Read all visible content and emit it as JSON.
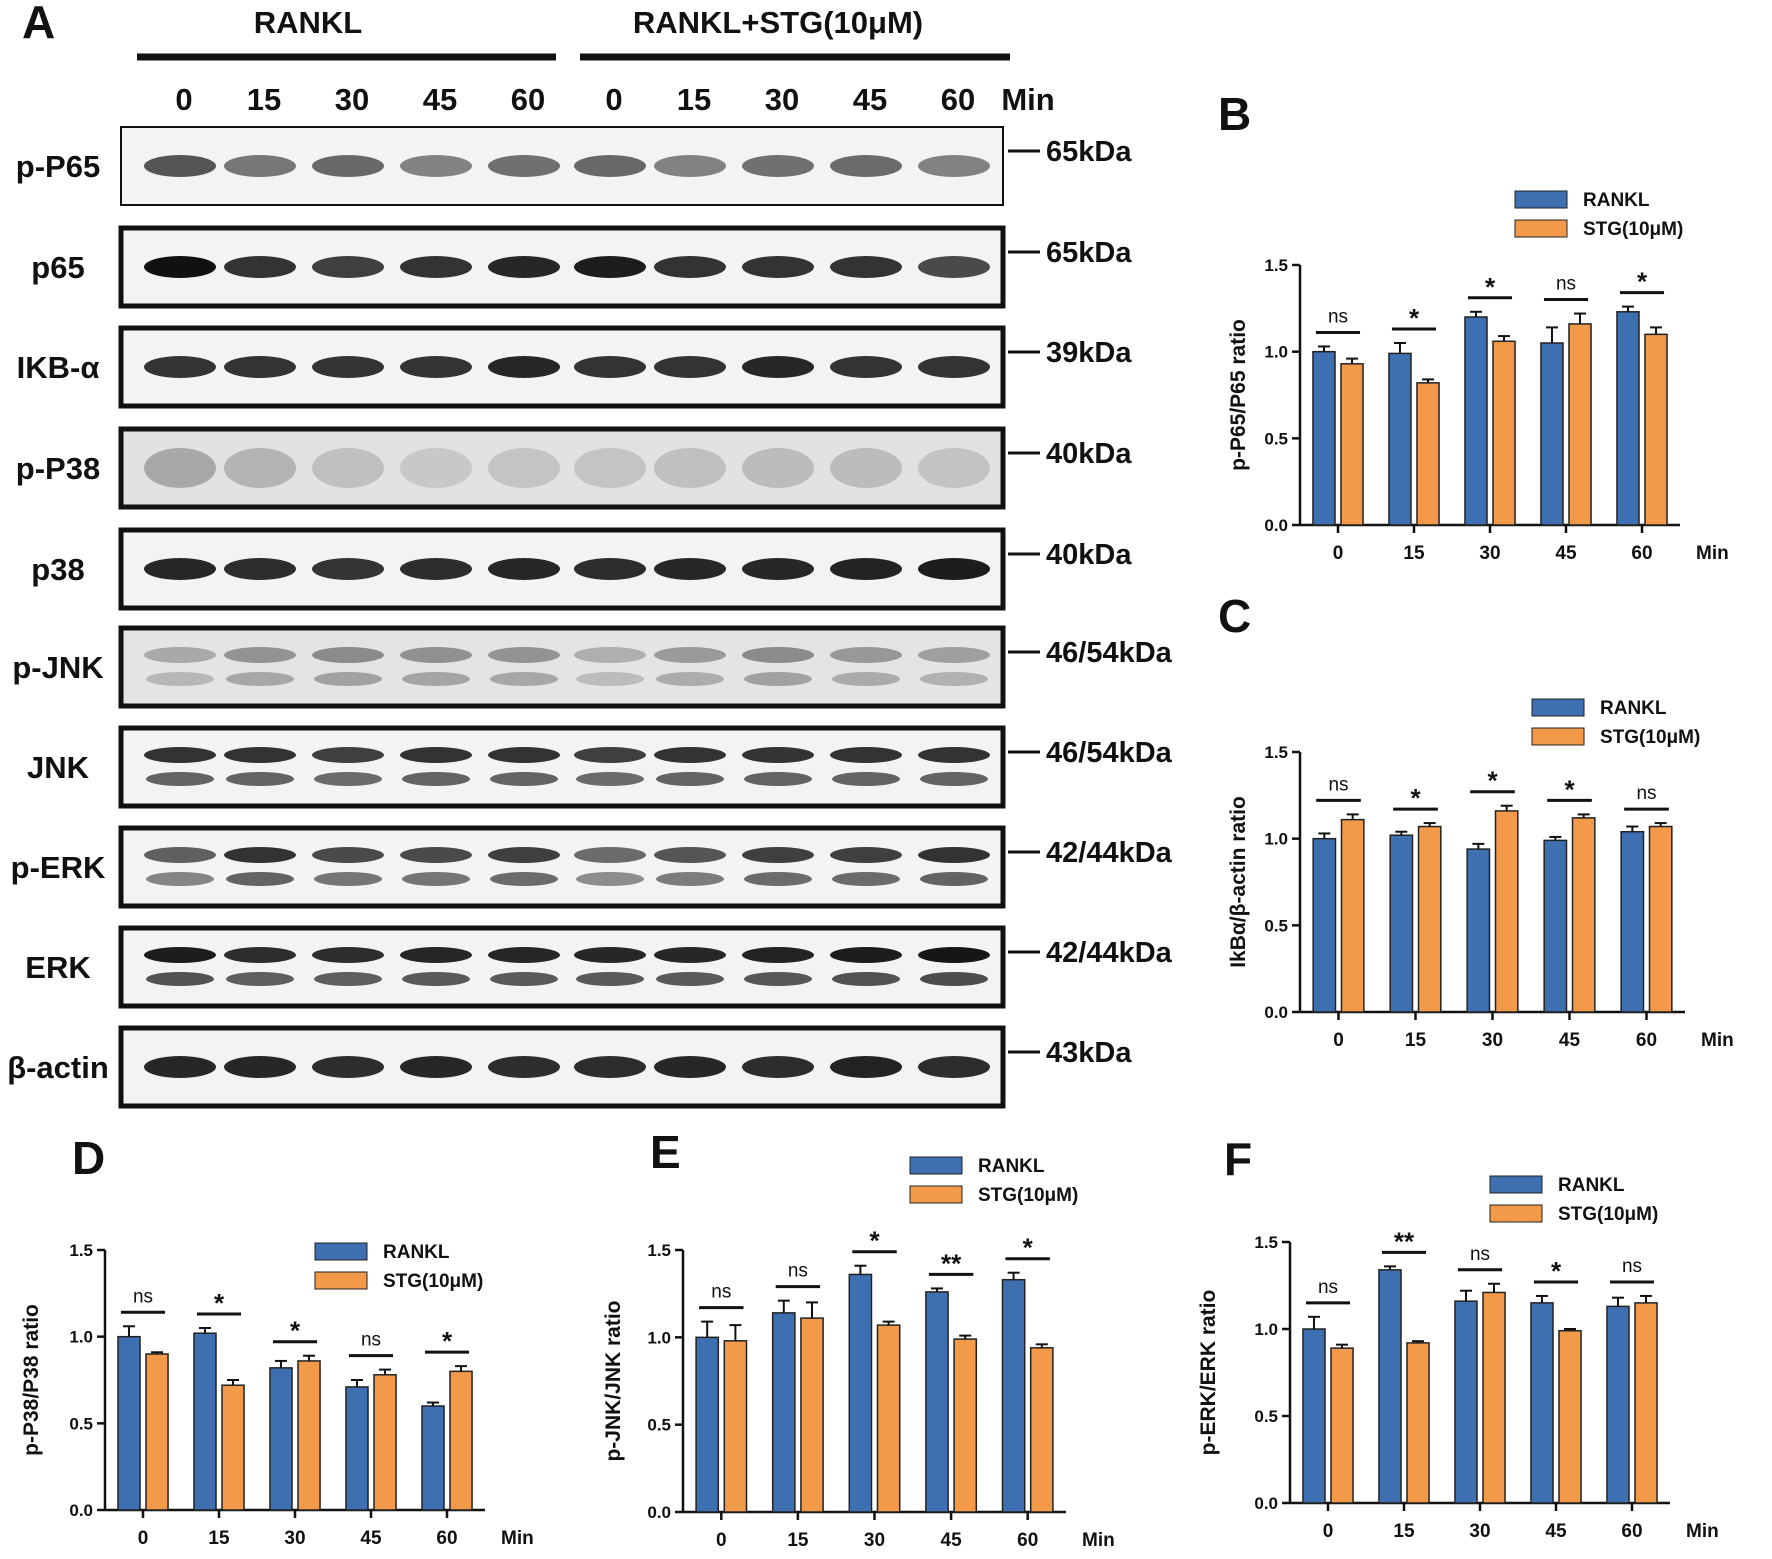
{
  "colors": {
    "rankl": "#3E6FB0",
    "stg": "#F2994A",
    "axis": "#111111"
  },
  "blot": {
    "panel_letter": "A",
    "groups": [
      "RANKL",
      "RANKL+STG(10μM)"
    ],
    "timepoints": [
      "0",
      "15",
      "30",
      "45",
      "60",
      "0",
      "15",
      "30",
      "45",
      "60"
    ],
    "time_unit": "Min",
    "rows": [
      {
        "label": "p-P65",
        "kda": "65kDa",
        "bands": 1
      },
      {
        "label": "p65",
        "kda": "65kDa",
        "bands": 1
      },
      {
        "label": "IKB-α",
        "kda": "39kDa",
        "bands": 1
      },
      {
        "label": "p-P38",
        "kda": "40kDa",
        "bands": 1
      },
      {
        "label": "p38",
        "kda": "40kDa",
        "bands": 1
      },
      {
        "label": "p-JNK",
        "kda": "46/54kDa",
        "bands": 2
      },
      {
        "label": "JNK",
        "kda": "46/54kDa",
        "bands": 2
      },
      {
        "label": "p-ERK",
        "kda": "42/44kDa",
        "bands": 2
      },
      {
        "label": "ERK",
        "kda": "42/44kDa",
        "bands": 2
      },
      {
        "label": "β-actin",
        "kda": "43kDa",
        "bands": 1
      }
    ]
  },
  "chart_data": [
    {
      "panel": "B",
      "type": "bar",
      "categories": [
        "0",
        "15",
        "30",
        "45",
        "60"
      ],
      "x_unit": "Min",
      "ylabel": "p-P65/P65 ratio",
      "ylim": [
        0,
        1.5
      ],
      "yticks": [
        "0.0",
        "0.5",
        "1.0",
        "1.5"
      ],
      "legend_position": "top-right",
      "series": [
        {
          "name": "RANKL",
          "values": [
            1.0,
            0.99,
            1.2,
            1.05,
            1.23
          ],
          "errors": [
            0.03,
            0.06,
            0.03,
            0.09,
            0.03
          ]
        },
        {
          "name": "STG(10μM)",
          "values": [
            0.93,
            0.82,
            1.06,
            1.16,
            1.1
          ],
          "errors": [
            0.03,
            0.02,
            0.03,
            0.06,
            0.04
          ]
        }
      ],
      "significance": [
        "ns",
        "*",
        "*",
        "ns",
        "*"
      ]
    },
    {
      "panel": "C",
      "type": "bar",
      "categories": [
        "0",
        "15",
        "30",
        "45",
        "60"
      ],
      "x_unit": "Min",
      "ylabel": "IkBα/β-actin ratio",
      "ylim": [
        0,
        1.5
      ],
      "yticks": [
        "0.0",
        "0.5",
        "1.0",
        "1.5"
      ],
      "legend_position": "top-right",
      "series": [
        {
          "name": "RANKL",
          "values": [
            1.0,
            1.02,
            0.94,
            0.99,
            1.04
          ],
          "errors": [
            0.03,
            0.02,
            0.03,
            0.02,
            0.03
          ]
        },
        {
          "name": "STG(10μM)",
          "values": [
            1.11,
            1.07,
            1.16,
            1.12,
            1.07
          ],
          "errors": [
            0.03,
            0.02,
            0.03,
            0.02,
            0.02
          ]
        }
      ],
      "significance": [
        "ns",
        "*",
        "*",
        "*",
        "ns"
      ]
    },
    {
      "panel": "D",
      "type": "bar",
      "categories": [
        "0",
        "15",
        "30",
        "45",
        "60"
      ],
      "x_unit": "Min",
      "ylabel": "p-P38/P38 ratio",
      "ylim": [
        0,
        1.5
      ],
      "yticks": [
        "0.0",
        "0.5",
        "1.0",
        "1.5"
      ],
      "legend_position": "top-right",
      "series": [
        {
          "name": "RANKL",
          "values": [
            1.0,
            1.02,
            0.82,
            0.71,
            0.6
          ],
          "errors": [
            0.06,
            0.03,
            0.04,
            0.04,
            0.02
          ]
        },
        {
          "name": "STG(10μM)",
          "values": [
            0.9,
            0.72,
            0.86,
            0.78,
            0.8
          ],
          "errors": [
            0.01,
            0.03,
            0.03,
            0.03,
            0.03
          ]
        }
      ],
      "significance": [
        "ns",
        "*",
        "*",
        "ns",
        "*"
      ]
    },
    {
      "panel": "E",
      "type": "bar",
      "categories": [
        "0",
        "15",
        "30",
        "45",
        "60"
      ],
      "x_unit": "Min",
      "ylabel": "p-JNK/JNK ratio",
      "ylim": [
        0,
        1.5
      ],
      "yticks": [
        "0.0",
        "0.5",
        "1.0",
        "1.5"
      ],
      "legend_position": "top-right",
      "series": [
        {
          "name": "RANKL",
          "values": [
            1.0,
            1.14,
            1.36,
            1.26,
            1.33
          ],
          "errors": [
            0.09,
            0.07,
            0.05,
            0.02,
            0.04
          ]
        },
        {
          "name": "STG(10μM)",
          "values": [
            0.98,
            1.11,
            1.07,
            0.99,
            0.94
          ],
          "errors": [
            0.09,
            0.09,
            0.02,
            0.02,
            0.02
          ]
        }
      ],
      "significance": [
        "ns",
        "ns",
        "*",
        "**",
        "*"
      ]
    },
    {
      "panel": "F",
      "type": "bar",
      "categories": [
        "0",
        "15",
        "30",
        "45",
        "60"
      ],
      "x_unit": "Min",
      "ylabel": "p-ERK/ERK ratio",
      "ylim": [
        0,
        1.5
      ],
      "yticks": [
        "0.0",
        "0.5",
        "1.0",
        "1.5"
      ],
      "legend_position": "top-right",
      "series": [
        {
          "name": "RANKL",
          "values": [
            1.0,
            1.34,
            1.16,
            1.15,
            1.13
          ],
          "errors": [
            0.07,
            0.02,
            0.06,
            0.04,
            0.05
          ]
        },
        {
          "name": "STG(10μM)",
          "values": [
            0.89,
            0.92,
            1.21,
            0.99,
            1.15
          ],
          "errors": [
            0.02,
            0.01,
            0.05,
            0.01,
            0.04
          ]
        }
      ],
      "significance": [
        "ns",
        "**",
        "ns",
        "*",
        "ns"
      ]
    }
  ]
}
